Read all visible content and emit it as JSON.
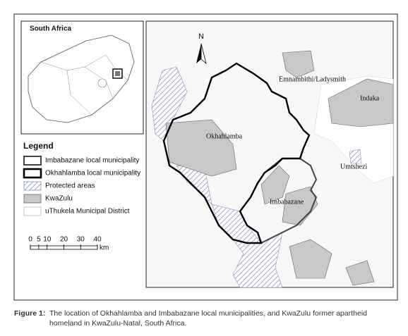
{
  "inset": {
    "title": "South Africa"
  },
  "legend": {
    "title": "Legend",
    "items": [
      {
        "label": "Imbabazane local municipality"
      },
      {
        "label": "Okhahlamba local municipality"
      },
      {
        "label": "Protected areas"
      },
      {
        "label": "KwaZulu"
      },
      {
        "label": "uThukela Municipal District"
      }
    ]
  },
  "scale_bar": {
    "ticks": [
      0,
      5,
      10,
      20,
      30,
      40
    ],
    "unit": "km"
  },
  "map": {
    "north": "N",
    "labels": [
      "Emnambithi/Ladysmith",
      "Indaka",
      "Okhahlamba",
      "Umtshezi",
      "Imbabazane"
    ]
  },
  "caption": {
    "label": "Figure 1:",
    "text": "The location of Okhahlamba and Imbabazane local municipalities, and KwaZulu former apartheid homeland in KwaZulu-Natal, South Africa."
  }
}
